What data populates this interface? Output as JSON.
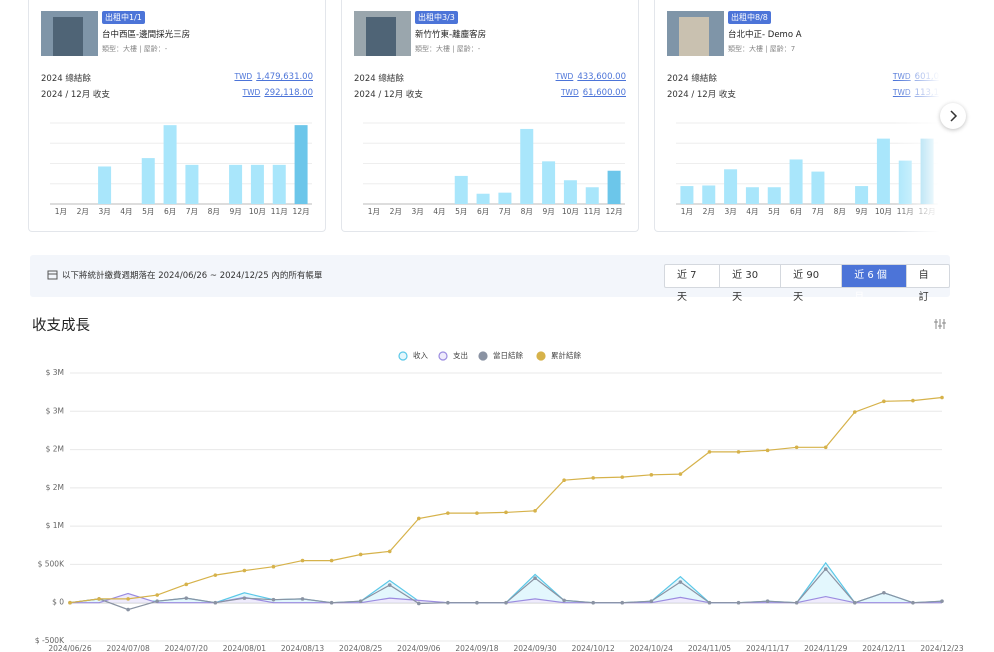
{
  "cards": [
    {
      "badge": "出租中1/1",
      "name": "台中西區-邊間採光三房",
      "meta": "類型：大樓 | 屋齡：-",
      "total_label": "2024 總結餘",
      "total_currency": "TWD",
      "total_value": "1,479,631.00",
      "month_label": "2024 / 12月 收支",
      "month_currency": "TWD",
      "month_value": "292,118.00",
      "chart": {
        "type": "bar",
        "categories": [
          "1月",
          "2月",
          "3月",
          "4月",
          "5月",
          "6月",
          "7月",
          "8月",
          "9月",
          "10月",
          "11月",
          "12月"
        ],
        "values": [
          0,
          0,
          139000,
          0,
          170000,
          292000,
          145000,
          0,
          145000,
          145000,
          145000,
          292118
        ],
        "ylim": [
          0,
          300000
        ],
        "color": "#a9e6fb",
        "highlight_color": "#6cc6ea"
      }
    },
    {
      "badge": "出租中3/3",
      "name": "新竹竹東-離塵客房",
      "meta": "類型：大樓 | 屋齡：-",
      "total_label": "2024 總結餘",
      "total_currency": "TWD",
      "total_value": "433,600.00",
      "month_label": "2024 / 12月 收支",
      "month_currency": "TWD",
      "month_value": "61,600.00",
      "chart": {
        "type": "bar",
        "categories": [
          "1月",
          "2月",
          "3月",
          "4月",
          "5月",
          "6月",
          "7月",
          "8月",
          "9月",
          "10月",
          "11月",
          "12月"
        ],
        "values": [
          0,
          0,
          0,
          0,
          52000,
          19000,
          21000,
          139000,
          79000,
          44000,
          31000,
          61600
        ],
        "ylim": [
          0,
          150000
        ],
        "color": "#a9e6fb",
        "highlight_color": "#6cc6ea"
      }
    },
    {
      "badge": "出租中8/8",
      "name": "台北中正- Demo A",
      "meta": "類型：大樓 | 屋齡：7",
      "total_label": "2024 總結餘",
      "total_currency": "TWD",
      "total_value": "601,0",
      "month_label": "2024 / 12月 收支",
      "month_currency": "TWD",
      "month_value": "113,1",
      "chart": {
        "type": "bar",
        "categories": [
          "1月",
          "2月",
          "3月",
          "4月",
          "5月",
          "6月",
          "7月",
          "8月",
          "9月",
          "10月",
          "11月",
          "12月"
        ],
        "values": [
          31000,
          32000,
          60000,
          29000,
          29000,
          77000,
          56000,
          0,
          31000,
          113000,
          75000,
          113000
        ],
        "ylim": [
          0,
          140000
        ],
        "color": "#a9e6fb",
        "highlight_color": "#6cc6ea"
      }
    }
  ],
  "filter": {
    "text": "以下將統計繳費週期落在 2024/06/26 ~ 2024/12/25 內的所有帳單",
    "ranges": [
      "近 7 天",
      "近 30 天",
      "近 90 天",
      "近 6 個月",
      "自訂"
    ],
    "active": 3
  },
  "chart_data": {
    "type": "line",
    "title": "收支成長",
    "x": [
      "2024/06/26",
      null,
      "2024/07/08",
      null,
      "2024/07/20",
      null,
      "2024/08/01",
      null,
      "2024/08/13",
      null,
      "2024/08/25",
      null,
      "2024/09/06",
      null,
      "2024/09/18",
      null,
      "2024/09/30",
      null,
      "2024/10/12",
      null,
      "2024/10/24",
      null,
      "2024/11/05",
      null,
      "2024/11/17",
      null,
      "2024/11/29",
      null,
      "2024/12/11",
      null,
      "2024/12/23"
    ],
    "series": [
      {
        "name": "收入",
        "color": "#5bc8e8",
        "fill": "#e3f7fd",
        "area": true,
        "markers": false,
        "values": [
          0,
          50000,
          30000,
          20000,
          60000,
          0,
          130000,
          40000,
          50000,
          0,
          20000,
          290000,
          20000,
          0,
          0,
          0,
          370000,
          30000,
          0,
          0,
          20000,
          340000,
          0,
          0,
          20000,
          0,
          520000,
          0,
          130000,
          0,
          20000
        ]
      },
      {
        "name": "支出",
        "color": "#9b8ce0",
        "fill": "#efebfc",
        "area": true,
        "markers": false,
        "values": [
          0,
          0,
          120000,
          0,
          0,
          0,
          70000,
          0,
          0,
          0,
          0,
          60000,
          30000,
          0,
          0,
          0,
          50000,
          0,
          0,
          0,
          0,
          70000,
          0,
          0,
          0,
          0,
          80000,
          0,
          0,
          0,
          0
        ]
      },
      {
        "name": "當日結餘",
        "color": "#8a93a3",
        "area": false,
        "markers": true,
        "values": [
          0,
          50000,
          -90000,
          20000,
          60000,
          0,
          60000,
          40000,
          50000,
          0,
          20000,
          230000,
          -10000,
          0,
          0,
          0,
          320000,
          30000,
          0,
          0,
          20000,
          270000,
          0,
          0,
          20000,
          0,
          440000,
          0,
          130000,
          0,
          20000
        ]
      },
      {
        "name": "累計結餘",
        "color": "#d6b24a",
        "area": false,
        "markers": true,
        "values": [
          0,
          50000,
          50000,
          100000,
          240000,
          360000,
          420000,
          470000,
          550000,
          550000,
          630000,
          670000,
          1100000,
          1170000,
          1170000,
          1180000,
          1200000,
          1600000,
          1630000,
          1640000,
          1670000,
          1680000,
          1970000,
          1970000,
          1990000,
          2030000,
          2030000,
          2490000,
          2630000,
          2640000,
          2680000
        ]
      }
    ],
    "ylim": [
      -500000,
      3000000
    ],
    "yticks": [
      {
        "value": -500000,
        "label": "$ -500K"
      },
      {
        "value": 0,
        "label": "$ 0"
      },
      {
        "value": 500000,
        "label": "$ 500K"
      },
      {
        "value": 1000000,
        "label": "$ 1M"
      },
      {
        "value": 1500000,
        "label": "$ 2M"
      },
      {
        "value": 2000000,
        "label": "$ 2M"
      },
      {
        "value": 2500000,
        "label": "$ 3M"
      },
      {
        "value": 3000000,
        "label": "$ 3M"
      }
    ],
    "grid": true,
    "legend": "top"
  }
}
